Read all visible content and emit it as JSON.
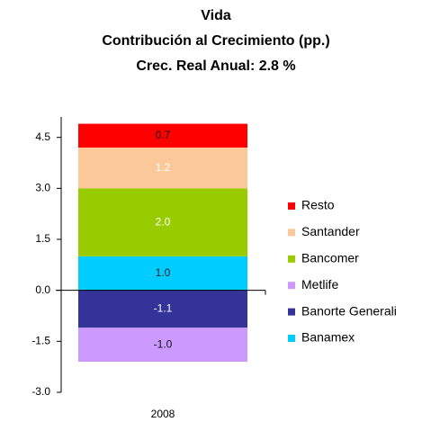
{
  "chart_data": {
    "type": "stacked_bar",
    "title": "Vida",
    "subtitle": "Contribución al Crecimiento (pp.)",
    "annotation": "Crec. Real Anual: 2.8 %",
    "categories": [
      "2008"
    ],
    "series": [
      {
        "name": "Banamex",
        "color": "#00ccff",
        "label_color": "#222222",
        "values": [
          1.0
        ],
        "value_labels": [
          "1.0"
        ]
      },
      {
        "name": "Banorte Generali",
        "color": "#333399",
        "label_color": "#ffffff",
        "values": [
          -1.1
        ],
        "value_labels": [
          "-1.1"
        ]
      },
      {
        "name": "Metlife",
        "color": "#cc99ff",
        "label_color": "#111111",
        "values": [
          -1.0
        ],
        "value_labels": [
          "-1.0"
        ]
      },
      {
        "name": "Bancomer",
        "color": "#99cc00",
        "label_color": "#ffffff",
        "values": [
          2.0
        ],
        "value_labels": [
          "2.0"
        ]
      },
      {
        "name": "Santander",
        "color": "#fbc89a",
        "label_color": "#ffffff",
        "values": [
          1.2
        ],
        "value_labels": [
          "1.2"
        ]
      },
      {
        "name": "Resto",
        "color": "#ff0000",
        "label_color": "#111111",
        "values": [
          0.7
        ],
        "value_labels": [
          "0.7"
        ]
      }
    ],
    "ylim": [
      -3,
      5.1
    ],
    "yticks": [
      {
        "value": -3,
        "label": "-3.0"
      },
      {
        "value": -1.5,
        "label": "-1.5"
      },
      {
        "value": 0,
        "label": "0.0"
      },
      {
        "value": 1.5,
        "label": "1.5"
      },
      {
        "value": 3,
        "label": "3.0"
      },
      {
        "value": 4.5,
        "label": "4.5"
      }
    ],
    "legend": "right"
  }
}
